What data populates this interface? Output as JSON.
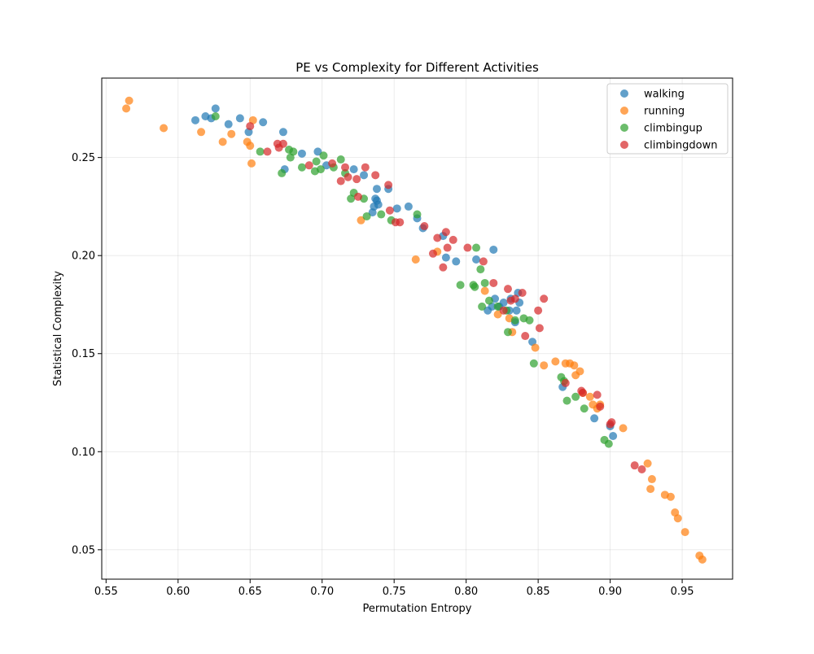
{
  "chart_data": {
    "type": "scatter",
    "title": "PE vs Complexity for Different Activities",
    "xlabel": "Permutation Entropy",
    "ylabel": "Statistical Complexity",
    "xlim": [
      0.547,
      0.985
    ],
    "ylim": [
      0.035,
      0.2905
    ],
    "xticks": [
      "0.55",
      "0.60",
      "0.65",
      "0.70",
      "0.75",
      "0.80",
      "0.85",
      "0.90",
      "0.95"
    ],
    "yticks": [
      "0.05",
      "0.10",
      "0.15",
      "0.20",
      "0.25"
    ],
    "grid": true,
    "legend_position": "top-right",
    "series": [
      {
        "name": "walking",
        "color": "#1f77b4",
        "points": [
          [
            0.612,
            0.269
          ],
          [
            0.619,
            0.271
          ],
          [
            0.623,
            0.27
          ],
          [
            0.626,
            0.275
          ],
          [
            0.635,
            0.267
          ],
          [
            0.643,
            0.27
          ],
          [
            0.649,
            0.263
          ],
          [
            0.659,
            0.268
          ],
          [
            0.673,
            0.263
          ],
          [
            0.674,
            0.244
          ],
          [
            0.686,
            0.252
          ],
          [
            0.697,
            0.253
          ],
          [
            0.703,
            0.246
          ],
          [
            0.722,
            0.244
          ],
          [
            0.729,
            0.241
          ],
          [
            0.735,
            0.222
          ],
          [
            0.736,
            0.225
          ],
          [
            0.737,
            0.229
          ],
          [
            0.738,
            0.228
          ],
          [
            0.738,
            0.234
          ],
          [
            0.739,
            0.226
          ],
          [
            0.746,
            0.234
          ],
          [
            0.752,
            0.224
          ],
          [
            0.76,
            0.225
          ],
          [
            0.766,
            0.219
          ],
          [
            0.77,
            0.214
          ],
          [
            0.784,
            0.21
          ],
          [
            0.786,
            0.199
          ],
          [
            0.793,
            0.197
          ],
          [
            0.807,
            0.198
          ],
          [
            0.815,
            0.172
          ],
          [
            0.818,
            0.174
          ],
          [
            0.819,
            0.203
          ],
          [
            0.82,
            0.178
          ],
          [
            0.823,
            0.174
          ],
          [
            0.826,
            0.176
          ],
          [
            0.83,
            0.172
          ],
          [
            0.831,
            0.178
          ],
          [
            0.834,
            0.166
          ],
          [
            0.835,
            0.172
          ],
          [
            0.836,
            0.181
          ],
          [
            0.837,
            0.176
          ],
          [
            0.846,
            0.156
          ],
          [
            0.867,
            0.133
          ],
          [
            0.889,
            0.117
          ],
          [
            0.9,
            0.113
          ],
          [
            0.902,
            0.108
          ]
        ]
      },
      {
        "name": "running",
        "color": "#ff7f0e",
        "points": [
          [
            0.564,
            0.275
          ],
          [
            0.566,
            0.279
          ],
          [
            0.59,
            0.265
          ],
          [
            0.616,
            0.263
          ],
          [
            0.631,
            0.258
          ],
          [
            0.637,
            0.262
          ],
          [
            0.648,
            0.258
          ],
          [
            0.65,
            0.256
          ],
          [
            0.651,
            0.247
          ],
          [
            0.652,
            0.269
          ],
          [
            0.727,
            0.218
          ],
          [
            0.765,
            0.198
          ],
          [
            0.78,
            0.202
          ],
          [
            0.813,
            0.182
          ],
          [
            0.822,
            0.17
          ],
          [
            0.83,
            0.168
          ],
          [
            0.832,
            0.161
          ],
          [
            0.848,
            0.153
          ],
          [
            0.854,
            0.144
          ],
          [
            0.862,
            0.146
          ],
          [
            0.869,
            0.145
          ],
          [
            0.872,
            0.145
          ],
          [
            0.875,
            0.144
          ],
          [
            0.876,
            0.139
          ],
          [
            0.879,
            0.141
          ],
          [
            0.881,
            0.13
          ],
          [
            0.886,
            0.128
          ],
          [
            0.888,
            0.124
          ],
          [
            0.891,
            0.122
          ],
          [
            0.893,
            0.124
          ],
          [
            0.909,
            0.112
          ],
          [
            0.926,
            0.094
          ],
          [
            0.928,
            0.081
          ],
          [
            0.929,
            0.086
          ],
          [
            0.938,
            0.078
          ],
          [
            0.942,
            0.077
          ],
          [
            0.945,
            0.069
          ],
          [
            0.947,
            0.066
          ],
          [
            0.952,
            0.059
          ],
          [
            0.962,
            0.047
          ],
          [
            0.964,
            0.045
          ]
        ]
      },
      {
        "name": "climbingup",
        "color": "#2ca02c",
        "points": [
          [
            0.626,
            0.271
          ],
          [
            0.657,
            0.253
          ],
          [
            0.672,
            0.242
          ],
          [
            0.677,
            0.254
          ],
          [
            0.678,
            0.25
          ],
          [
            0.68,
            0.253
          ],
          [
            0.686,
            0.245
          ],
          [
            0.695,
            0.243
          ],
          [
            0.696,
            0.248
          ],
          [
            0.699,
            0.244
          ],
          [
            0.701,
            0.251
          ],
          [
            0.708,
            0.245
          ],
          [
            0.713,
            0.249
          ],
          [
            0.716,
            0.242
          ],
          [
            0.72,
            0.229
          ],
          [
            0.722,
            0.232
          ],
          [
            0.729,
            0.229
          ],
          [
            0.731,
            0.22
          ],
          [
            0.741,
            0.221
          ],
          [
            0.748,
            0.218
          ],
          [
            0.766,
            0.221
          ],
          [
            0.796,
            0.185
          ],
          [
            0.805,
            0.185
          ],
          [
            0.806,
            0.184
          ],
          [
            0.807,
            0.204
          ],
          [
            0.81,
            0.193
          ],
          [
            0.811,
            0.174
          ],
          [
            0.813,
            0.186
          ],
          [
            0.816,
            0.177
          ],
          [
            0.822,
            0.174
          ],
          [
            0.828,
            0.172
          ],
          [
            0.829,
            0.161
          ],
          [
            0.834,
            0.167
          ],
          [
            0.84,
            0.168
          ],
          [
            0.844,
            0.167
          ],
          [
            0.847,
            0.145
          ],
          [
            0.866,
            0.138
          ],
          [
            0.868,
            0.136
          ],
          [
            0.87,
            0.126
          ],
          [
            0.876,
            0.128
          ],
          [
            0.882,
            0.122
          ],
          [
            0.896,
            0.106
          ],
          [
            0.899,
            0.104
          ]
        ]
      },
      {
        "name": "climbingdown",
        "color": "#d62728",
        "points": [
          [
            0.65,
            0.266
          ],
          [
            0.662,
            0.253
          ],
          [
            0.669,
            0.257
          ],
          [
            0.67,
            0.255
          ],
          [
            0.673,
            0.257
          ],
          [
            0.691,
            0.246
          ],
          [
            0.707,
            0.247
          ],
          [
            0.713,
            0.238
          ],
          [
            0.716,
            0.245
          ],
          [
            0.718,
            0.24
          ],
          [
            0.724,
            0.239
          ],
          [
            0.725,
            0.23
          ],
          [
            0.73,
            0.245
          ],
          [
            0.737,
            0.241
          ],
          [
            0.746,
            0.236
          ],
          [
            0.747,
            0.223
          ],
          [
            0.751,
            0.217
          ],
          [
            0.754,
            0.217
          ],
          [
            0.771,
            0.215
          ],
          [
            0.777,
            0.201
          ],
          [
            0.78,
            0.209
          ],
          [
            0.784,
            0.194
          ],
          [
            0.786,
            0.212
          ],
          [
            0.787,
            0.204
          ],
          [
            0.791,
            0.208
          ],
          [
            0.801,
            0.204
          ],
          [
            0.812,
            0.197
          ],
          [
            0.819,
            0.186
          ],
          [
            0.826,
            0.172
          ],
          [
            0.829,
            0.183
          ],
          [
            0.831,
            0.177
          ],
          [
            0.834,
            0.178
          ],
          [
            0.839,
            0.181
          ],
          [
            0.841,
            0.159
          ],
          [
            0.85,
            0.172
          ],
          [
            0.851,
            0.163
          ],
          [
            0.854,
            0.178
          ],
          [
            0.869,
            0.135
          ],
          [
            0.88,
            0.131
          ],
          [
            0.881,
            0.13
          ],
          [
            0.891,
            0.129
          ],
          [
            0.893,
            0.123
          ],
          [
            0.9,
            0.114
          ],
          [
            0.901,
            0.115
          ],
          [
            0.917,
            0.093
          ],
          [
            0.922,
            0.091
          ]
        ]
      }
    ]
  }
}
